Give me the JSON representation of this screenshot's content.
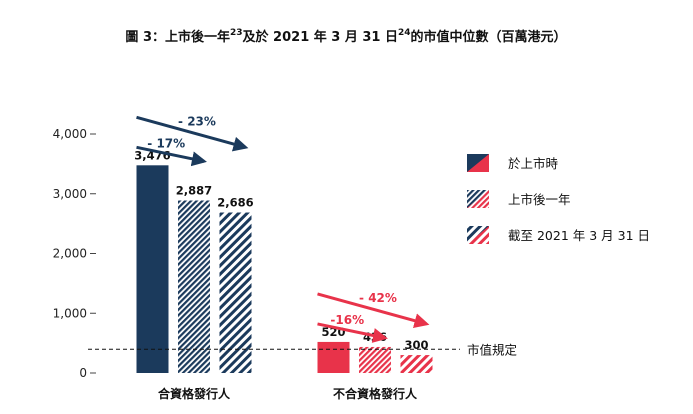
{
  "title": {
    "prefix": "圖 3：上市後一年",
    "note1": "23",
    "middle": "及於 2021 年 3 月 31 日",
    "note2": "24",
    "suffix": "的市值中位數（百萬港元）"
  },
  "colors": {
    "navy": "#1b3a5c",
    "red": "#e8334a",
    "hatch_bg": "#ffffff"
  },
  "chart_data": {
    "type": "bar",
    "title": "圖 3：上市後一年23及於 2021 年 3 月 31 日24的市值中位數（百萬港元）",
    "categories": [
      "合資格發行人",
      "不合資格發行人"
    ],
    "series": [
      {
        "name": "於上市時",
        "values": [
          3476,
          520
        ],
        "labels": [
          "3,476",
          "520"
        ],
        "pattern": "solid"
      },
      {
        "name": "上市後一年",
        "values": [
          2887,
          436
        ],
        "labels": [
          "2,887",
          "436"
        ],
        "pattern": "hatch-dense"
      },
      {
        "name": "截至 2021 年 3 月 31 日",
        "values": [
          2686,
          300
        ],
        "labels": [
          "2,686",
          "300"
        ],
        "pattern": "hatch-sparse"
      }
    ],
    "ylim": [
      0,
      4000
    ],
    "yticks": [
      0,
      1000,
      2000,
      3000,
      4000
    ],
    "ytick_labels": [
      "0",
      "1,000",
      "2,000",
      "3,000",
      "4,000"
    ],
    "grid": false,
    "legend_position": "right",
    "threshold": {
      "value": 430,
      "label": "市值規定"
    },
    "annotations": [
      {
        "category": 0,
        "from_series": 0,
        "to_series": 1,
        "text": "- 17%",
        "color": "navy"
      },
      {
        "category": 0,
        "from_series": 0,
        "to_series": 2,
        "text": "- 23%",
        "color": "navy"
      },
      {
        "category": 1,
        "from_series": 0,
        "to_series": 1,
        "text": "-16%",
        "color": "red"
      },
      {
        "category": 1,
        "from_series": 0,
        "to_series": 2,
        "text": "- 42%",
        "color": "red"
      }
    ]
  }
}
